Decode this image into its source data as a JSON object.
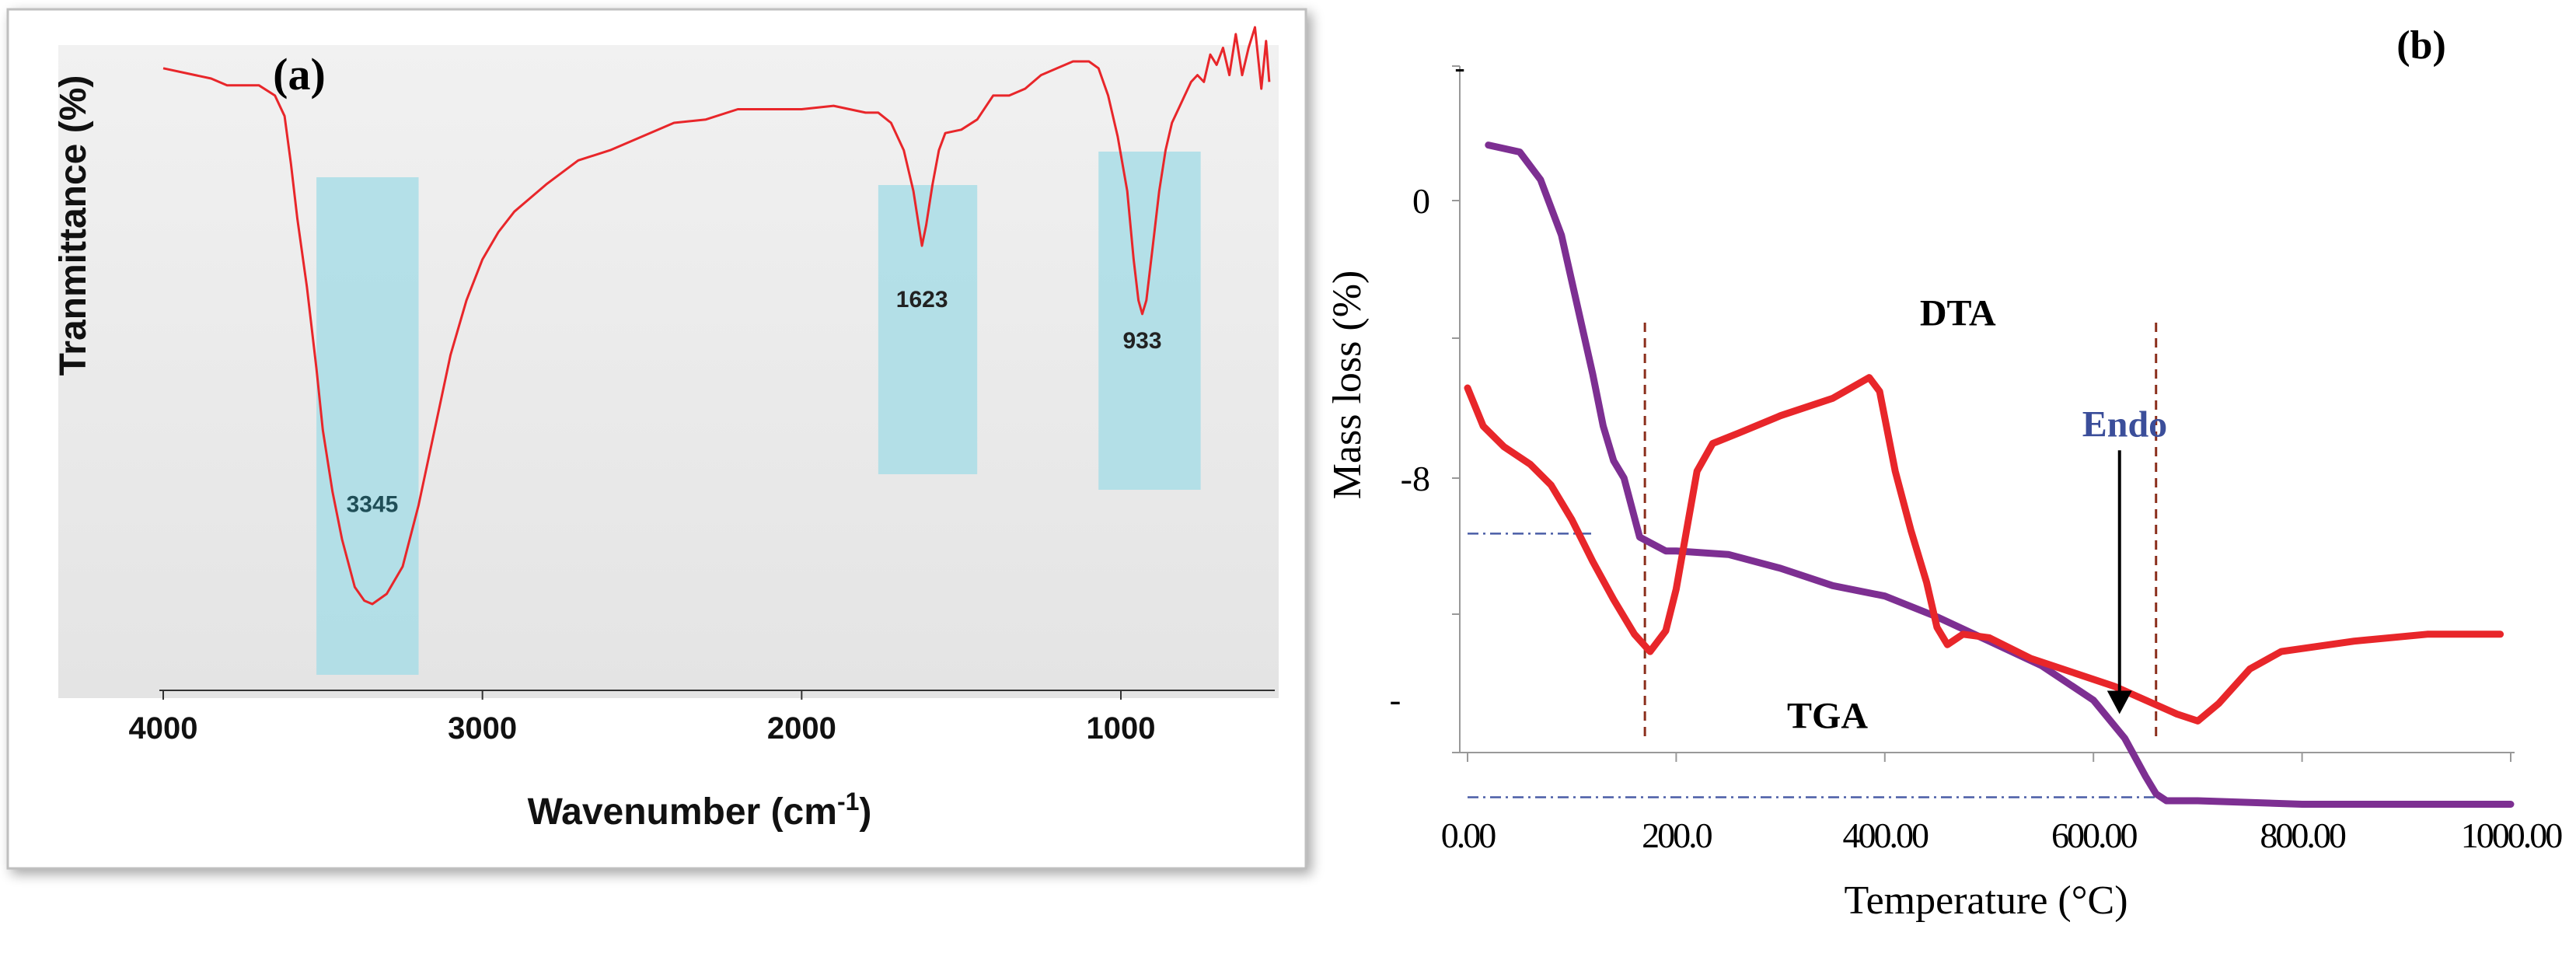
{
  "chart_data": [
    {
      "panel_label": "(a)",
      "type": "line",
      "xlabel": "Wavenumber (cm",
      "xlabel_sup": "-1",
      "xlabel_close": ")",
      "ylabel": "Tranmittance (%)",
      "xlim": [
        4000,
        530
      ],
      "x_ticks": [
        4000,
        3000,
        2000,
        1000
      ],
      "x_tick_labels": [
        "4000",
        "3000",
        "2000",
        "1000"
      ],
      "ylim": [
        0,
        100
      ],
      "grid": false,
      "highlight_bands": [
        {
          "from": 3520,
          "to": 3200,
          "label": "3345",
          "label_x": 3345,
          "label_y": 25
        },
        {
          "from": 1760,
          "to": 1450,
          "label": "1623",
          "label_x": 1623,
          "label_y": 55
        },
        {
          "from": 1070,
          "to": 750,
          "label": "933",
          "label_x": 933,
          "label_y": 49
        }
      ],
      "series": [
        {
          "color": "#e8262a",
          "points": [
            [
              4000,
              90
            ],
            [
              3900,
              89
            ],
            [
              3850,
              88.5
            ],
            [
              3800,
              87.5
            ],
            [
              3750,
              87.5
            ],
            [
              3700,
              87.5
            ],
            [
              3650,
              86
            ],
            [
              3620,
              83
            ],
            [
              3600,
              76
            ],
            [
              3580,
              68
            ],
            [
              3550,
              58
            ],
            [
              3520,
              46
            ],
            [
              3500,
              37
            ],
            [
              3470,
              28
            ],
            [
              3440,
              21
            ],
            [
              3400,
              14
            ],
            [
              3370,
              12
            ],
            [
              3345,
              11.5
            ],
            [
              3300,
              13
            ],
            [
              3250,
              17
            ],
            [
              3200,
              26
            ],
            [
              3150,
              37
            ],
            [
              3100,
              48
            ],
            [
              3050,
              56
            ],
            [
              3000,
              62
            ],
            [
              2950,
              66
            ],
            [
              2900,
              69
            ],
            [
              2800,
              73
            ],
            [
              2700,
              76.5
            ],
            [
              2600,
              78
            ],
            [
              2500,
              80
            ],
            [
              2400,
              82
            ],
            [
              2300,
              82.5
            ],
            [
              2200,
              84
            ],
            [
              2100,
              84
            ],
            [
              2000,
              84
            ],
            [
              1900,
              84.5
            ],
            [
              1800,
              83.5
            ],
            [
              1760,
              83.5
            ],
            [
              1720,
              82
            ],
            [
              1680,
              78
            ],
            [
              1650,
              72
            ],
            [
              1630,
              66
            ],
            [
              1623,
              64
            ],
            [
              1610,
              67
            ],
            [
              1590,
              73
            ],
            [
              1570,
              78
            ],
            [
              1550,
              80.5
            ],
            [
              1500,
              81
            ],
            [
              1450,
              82.5
            ],
            [
              1400,
              86
            ],
            [
              1350,
              86
            ],
            [
              1300,
              87
            ],
            [
              1250,
              89
            ],
            [
              1200,
              90
            ],
            [
              1150,
              91
            ],
            [
              1100,
              91
            ],
            [
              1070,
              90
            ],
            [
              1040,
              86
            ],
            [
              1010,
              80
            ],
            [
              980,
              72
            ],
            [
              960,
              62
            ],
            [
              945,
              56
            ],
            [
              933,
              54
            ],
            [
              920,
              56
            ],
            [
              900,
              64
            ],
            [
              880,
              72
            ],
            [
              860,
              78
            ],
            [
              840,
              82
            ],
            [
              820,
              84
            ],
            [
              800,
              86
            ],
            [
              780,
              88
            ],
            [
              760,
              89
            ],
            [
              740,
              88
            ],
            [
              720,
              92
            ],
            [
              700,
              90.5
            ],
            [
              680,
              93
            ],
            [
              660,
              89
            ],
            [
              640,
              95
            ],
            [
              620,
              89
            ],
            [
              600,
              93
            ],
            [
              580,
              96
            ],
            [
              560,
              87
            ],
            [
              545,
              94
            ],
            [
              535,
              88
            ]
          ]
        }
      ]
    },
    {
      "panel_label": "(b)",
      "type": "line",
      "xlabel": "Temperature (°C)",
      "ylabel": "Mass loss (%)",
      "xlim": [
        0,
        1000
      ],
      "x_ticks": [
        0,
        200,
        400,
        600,
        800,
        1000
      ],
      "x_tick_labels": [
        "0.00",
        "200.0",
        "400.00",
        "600.00",
        "800.00",
        "1000.00"
      ],
      "ylim": [
        -18,
        4
      ],
      "y_ticks": [
        0,
        -8
      ],
      "y_tick_labels": [
        "0",
        "-8"
      ],
      "grid": false,
      "legend": null,
      "curve_labels": [
        {
          "text": "DTA",
          "x": 470,
          "y": -3.6
        },
        {
          "text": "TGA",
          "x": 345,
          "y": -15.2
        },
        {
          "text": "Endo",
          "x": 630,
          "y": -6.8,
          "color": "#3b4e9a"
        }
      ],
      "arrow": {
        "from": [
          625,
          -7.2
        ],
        "to": [
          625,
          -14.8
        ]
      },
      "vertical_lines": [
        170,
        660
      ],
      "horizontal_refs": [
        {
          "y": -9.6,
          "x_from": 0,
          "x_to": 120
        },
        {
          "y": -17.2,
          "x_from": 0,
          "x_to": 660
        }
      ],
      "series": [
        {
          "name": "TGA",
          "color": "#7d2f92",
          "points": [
            [
              20,
              1.6
            ],
            [
              50,
              1.4
            ],
            [
              70,
              0.6
            ],
            [
              90,
              -1
            ],
            [
              105,
              -3
            ],
            [
              120,
              -5
            ],
            [
              130,
              -6.5
            ],
            [
              140,
              -7.5
            ],
            [
              150,
              -8
            ],
            [
              165,
              -9.7
            ],
            [
              190,
              -10.1
            ],
            [
              200,
              -10.1
            ],
            [
              250,
              -10.2
            ],
            [
              300,
              -10.6
            ],
            [
              350,
              -11.1
            ],
            [
              400,
              -11.4
            ],
            [
              450,
              -12
            ],
            [
              500,
              -12.7
            ],
            [
              550,
              -13.4
            ],
            [
              600,
              -14.4
            ],
            [
              630,
              -15.5
            ],
            [
              650,
              -16.6
            ],
            [
              660,
              -17.1
            ],
            [
              670,
              -17.3
            ],
            [
              700,
              -17.3
            ],
            [
              800,
              -17.4
            ],
            [
              900,
              -17.4
            ],
            [
              1000,
              -17.4
            ]
          ]
        },
        {
          "name": "DTA",
          "color": "#e8262a",
          "points": [
            [
              0,
              -5.4
            ],
            [
              15,
              -6.5
            ],
            [
              35,
              -7.1
            ],
            [
              60,
              -7.6
            ],
            [
              80,
              -8.2
            ],
            [
              100,
              -9.2
            ],
            [
              120,
              -10.4
            ],
            [
              140,
              -11.5
            ],
            [
              160,
              -12.5
            ],
            [
              175,
              -13
            ],
            [
              190,
              -12.4
            ],
            [
              200,
              -11.2
            ],
            [
              210,
              -9.5
            ],
            [
              220,
              -7.8
            ],
            [
              235,
              -7
            ],
            [
              260,
              -6.7
            ],
            [
              300,
              -6.2
            ],
            [
              350,
              -5.7
            ],
            [
              385,
              -5.1
            ],
            [
              395,
              -5.5
            ],
            [
              410,
              -7.8
            ],
            [
              425,
              -9.5
            ],
            [
              440,
              -11
            ],
            [
              450,
              -12.3
            ],
            [
              460,
              -12.8
            ],
            [
              475,
              -12.5
            ],
            [
              500,
              -12.6
            ],
            [
              540,
              -13.2
            ],
            [
              580,
              -13.6
            ],
            [
              620,
              -14
            ],
            [
              650,
              -14.4
            ],
            [
              680,
              -14.8
            ],
            [
              700,
              -15
            ],
            [
              720,
              -14.5
            ],
            [
              750,
              -13.5
            ],
            [
              780,
              -13
            ],
            [
              850,
              -12.7
            ],
            [
              920,
              -12.5
            ],
            [
              990,
              -12.5
            ]
          ]
        }
      ]
    }
  ]
}
